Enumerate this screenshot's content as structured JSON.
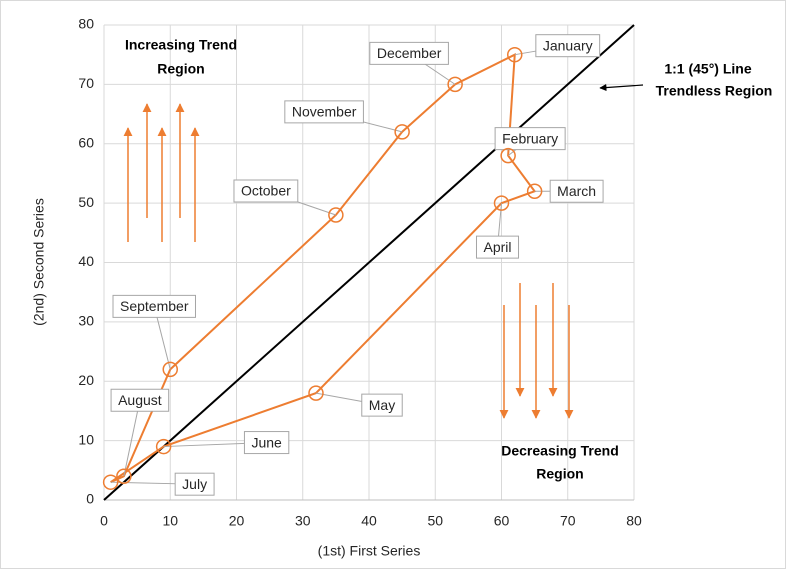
{
  "chart_data": {
    "type": "scatter",
    "x": [
      62,
      61,
      65,
      60,
      32,
      9,
      1,
      3,
      10,
      35,
      45,
      53
    ],
    "series": [
      {
        "color": "#ed7d31",
        "values": [
          75,
          58,
          52,
          50,
          18,
          9,
          3,
          4,
          22,
          48,
          62,
          70
        ]
      }
    ],
    "point_labels": [
      "January",
      "February",
      "March",
      "April",
      "May",
      "June",
      "July",
      "August",
      "September",
      "October",
      "November",
      "December"
    ],
    "reference_line": {
      "x": [
        0,
        80
      ],
      "y": [
        0,
        80
      ],
      "color": "#000000"
    },
    "xlim": [
      0,
      80
    ],
    "ylim": [
      0,
      80
    ],
    "xticks": [
      0,
      10,
      20,
      30,
      40,
      50,
      60,
      70,
      80
    ],
    "yticks": [
      0,
      10,
      20,
      30,
      40,
      50,
      60,
      70,
      80
    ],
    "grid": true,
    "xlabel": "(1st) First Series",
    "ylabel": "(2nd) Second Series",
    "annotations": {
      "increasing": [
        "Increasing Trend",
        "Region"
      ],
      "trendless": [
        "1:1 (45°) Line",
        "Trendless Region"
      ],
      "decreasing": [
        "Decreasing Trend",
        "Region"
      ]
    }
  }
}
